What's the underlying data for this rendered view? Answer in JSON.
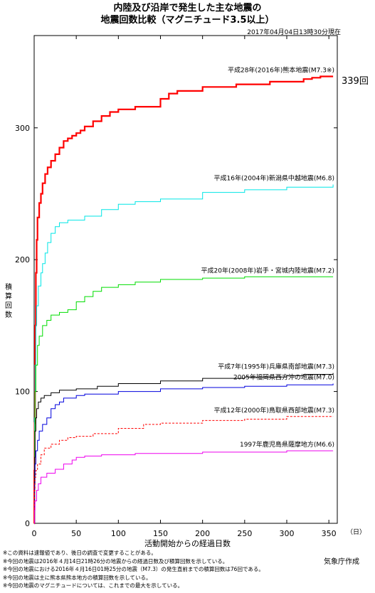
{
  "header": {
    "title_line1": "内陸及び沿岸で発生した主な地震の",
    "title_line2": "地震回数比較（マグニチュード3.5以上）",
    "timestamp": "2017年04月04日13時30分現在"
  },
  "footer": {
    "agency": "気象庁作成",
    "notes": [
      "※この資料は速報値であり、後日の調査で変更することがある。",
      "※今回の地震は2016年４月14日21時26分の地震からの経過日数及び積算回数を示している。",
      "※今回の地震における2016年４月16日01時25分の地震（M7.3）の発生直前までの積算回数は76回である。",
      "※今回の地震は主に熊本県熊本地方の積算回数を示している。",
      "※今回の地震のマグニチュードについては、これまでの最大を示している。"
    ]
  },
  "chart_data": {
    "type": "line",
    "title": "内陸及び沿岸で発生した主な地震の地震回数比較（マグニチュード3.5以上）",
    "xlabel": "活動開始からの経過日数",
    "xunit": "（日）",
    "ylabel": "積算回数",
    "xlim": [
      0,
      360
    ],
    "ylim": [
      0,
      370
    ],
    "xticks": [
      0,
      50,
      100,
      150,
      200,
      250,
      300,
      350
    ],
    "yticks": [
      0,
      100,
      200,
      300
    ],
    "grid": false,
    "end_label": "339回",
    "series": [
      {
        "name": "平成28年(2016年)熊本地震(M7.3※)",
        "color": "#ff0000",
        "stroke_width": 2.2,
        "dashed": false,
        "points": [
          [
            0,
            0
          ],
          [
            0.2,
            40
          ],
          [
            0.5,
            76
          ],
          [
            1,
            150
          ],
          [
            2,
            190
          ],
          [
            3,
            215
          ],
          [
            4,
            232
          ],
          [
            6,
            243
          ],
          [
            8,
            250
          ],
          [
            10,
            258
          ],
          [
            13,
            265
          ],
          [
            16,
            270
          ],
          [
            20,
            275
          ],
          [
            25,
            280
          ],
          [
            30,
            285
          ],
          [
            35,
            290
          ],
          [
            40,
            292
          ],
          [
            45,
            294
          ],
          [
            50,
            296
          ],
          [
            55,
            298
          ],
          [
            60,
            301
          ],
          [
            70,
            305
          ],
          [
            80,
            309
          ],
          [
            90,
            312
          ],
          [
            100,
            314
          ],
          [
            120,
            316
          ],
          [
            150,
            322
          ],
          [
            160,
            326
          ],
          [
            170,
            328
          ],
          [
            200,
            331
          ],
          [
            240,
            333
          ],
          [
            280,
            335
          ],
          [
            320,
            337
          ],
          [
            330,
            338
          ],
          [
            340,
            339
          ],
          [
            355,
            339
          ]
        ]
      },
      {
        "name": "平成16年(2004年)新潟県中越地震(M6.8)",
        "color": "#00e6e6",
        "stroke_width": 1,
        "dashed": false,
        "points": [
          [
            0,
            0
          ],
          [
            0.5,
            80
          ],
          [
            1,
            120
          ],
          [
            2,
            150
          ],
          [
            3,
            165
          ],
          [
            5,
            180
          ],
          [
            8,
            190
          ],
          [
            10,
            197
          ],
          [
            13,
            205
          ],
          [
            16,
            213
          ],
          [
            20,
            220
          ],
          [
            25,
            225
          ],
          [
            30,
            228
          ],
          [
            40,
            230
          ],
          [
            60,
            233
          ],
          [
            80,
            238
          ],
          [
            100,
            242
          ],
          [
            120,
            244
          ],
          [
            150,
            246
          ],
          [
            200,
            251
          ],
          [
            250,
            253
          ],
          [
            300,
            255
          ],
          [
            355,
            257
          ]
        ]
      },
      {
        "name": "平成20年(2008年)岩手・宮城内陸地震(M7.2)",
        "color": "#00dd00",
        "stroke_width": 1,
        "dashed": false,
        "points": [
          [
            0,
            0
          ],
          [
            0.5,
            70
          ],
          [
            1,
            100
          ],
          [
            2,
            120
          ],
          [
            4,
            135
          ],
          [
            6,
            142
          ],
          [
            10,
            150
          ],
          [
            15,
            154
          ],
          [
            20,
            158
          ],
          [
            30,
            160
          ],
          [
            40,
            162
          ],
          [
            50,
            168
          ],
          [
            60,
            172
          ],
          [
            70,
            176
          ],
          [
            80,
            179
          ],
          [
            100,
            181
          ],
          [
            120,
            183
          ],
          [
            150,
            185
          ],
          [
            200,
            186
          ],
          [
            250,
            187
          ],
          [
            355,
            187
          ]
        ]
      },
      {
        "name": "平成7年(1995年)兵庫県南部地震(M7.3)",
        "color": "#000000",
        "stroke_width": 1,
        "dashed": false,
        "points": [
          [
            0,
            0
          ],
          [
            0.5,
            50
          ],
          [
            1,
            70
          ],
          [
            2,
            80
          ],
          [
            3,
            87
          ],
          [
            5,
            92
          ],
          [
            8,
            95
          ],
          [
            12,
            97
          ],
          [
            20,
            99
          ],
          [
            30,
            101
          ],
          [
            50,
            102
          ],
          [
            75,
            104
          ],
          [
            100,
            106
          ],
          [
            150,
            108
          ],
          [
            200,
            110
          ],
          [
            250,
            111
          ],
          [
            300,
            112
          ],
          [
            320,
            113
          ],
          [
            355,
            114
          ]
        ]
      },
      {
        "name": "2005年福岡県西方沖の地震(M7.0)",
        "color": "#0000dd",
        "stroke_width": 1,
        "dashed": false,
        "points": [
          [
            0,
            0
          ],
          [
            0.5,
            30
          ],
          [
            1,
            45
          ],
          [
            2,
            55
          ],
          [
            4,
            63
          ],
          [
            6,
            70
          ],
          [
            10,
            75
          ],
          [
            15,
            80
          ],
          [
            20,
            87
          ],
          [
            25,
            90
          ],
          [
            30,
            92
          ],
          [
            35,
            95
          ],
          [
            50,
            97
          ],
          [
            60,
            98
          ],
          [
            100,
            100
          ],
          [
            150,
            102
          ],
          [
            200,
            103
          ],
          [
            250,
            104
          ],
          [
            300,
            105
          ],
          [
            355,
            106
          ]
        ]
      },
      {
        "name": "平成12年(2000年)鳥取県西部地震(M7.3)",
        "color": "#ff0000",
        "stroke_width": 1,
        "dashed": true,
        "points": [
          [
            0,
            0
          ],
          [
            0.5,
            25
          ],
          [
            1,
            35
          ],
          [
            2,
            40
          ],
          [
            4,
            45
          ],
          [
            8,
            52
          ],
          [
            12,
            57
          ],
          [
            20,
            60
          ],
          [
            30,
            63
          ],
          [
            40,
            65
          ],
          [
            50,
            66
          ],
          [
            70,
            68
          ],
          [
            100,
            72
          ],
          [
            130,
            75
          ],
          [
            150,
            76
          ],
          [
            200,
            78
          ],
          [
            250,
            79
          ],
          [
            300,
            81
          ],
          [
            355,
            81
          ]
        ]
      },
      {
        "name": "1997年鹿児島県薩摩地方(M6.6)",
        "color": "#ee00ee",
        "stroke_width": 1,
        "dashed": false,
        "points": [
          [
            0,
            0
          ],
          [
            0.5,
            10
          ],
          [
            1,
            17
          ],
          [
            3,
            25
          ],
          [
            5,
            30
          ],
          [
            8,
            35
          ],
          [
            15,
            38
          ],
          [
            25,
            41
          ],
          [
            35,
            45
          ],
          [
            45,
            48
          ],
          [
            50,
            50
          ],
          [
            60,
            51
          ],
          [
            80,
            52
          ],
          [
            120,
            53
          ],
          [
            200,
            54
          ],
          [
            300,
            55
          ],
          [
            355,
            55
          ]
        ]
      }
    ],
    "annotations": [
      {
        "series": 0,
        "text": "平成28年(2016年)熊本地震(M7.3※)"
      },
      {
        "series": 1,
        "text": "平成16年(2004年)新潟県中越地震(M6.8)"
      },
      {
        "series": 2,
        "text": "平成20年(2008年)岩手・宮城内陸地震(M7.2)"
      },
      {
        "series": 3,
        "text": "平成7年(1995年)兵庫県南部地震(M7.3)"
      },
      {
        "series": 4,
        "text": "2005年福岡県西方沖の地震(M7.0)"
      },
      {
        "series": 5,
        "text": "平成12年(2000年)鳥取県西部地震(M7.3)"
      },
      {
        "series": 6,
        "text": "1997年鹿児島県薩摩地方(M6.6)"
      }
    ]
  }
}
